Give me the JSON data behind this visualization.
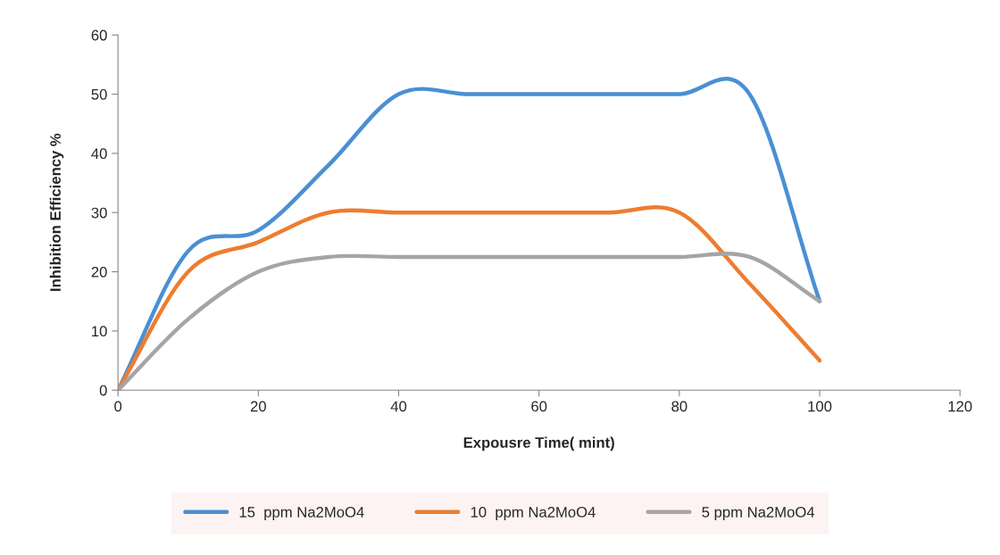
{
  "chart_data": {
    "type": "line",
    "xlabel": "Expousre Time( mint)",
    "ylabel": "Inhibition Efficiency %",
    "x": [
      0,
      10,
      20,
      30,
      40,
      50,
      60,
      70,
      80,
      90,
      100
    ],
    "series": [
      {
        "name": "15  ppm Na2MoO4",
        "color": "#4a8fd4",
        "values": [
          0,
          23.5,
          27,
          38,
          50,
          50,
          50,
          50,
          50,
          50,
          15
        ]
      },
      {
        "name": "10  ppm Na2MoO4",
        "color": "#ed7d31",
        "values": [
          0,
          20,
          25,
          30,
          30,
          30,
          30,
          30,
          30,
          18,
          5
        ]
      },
      {
        "name": "5 ppm Na2MoO4",
        "color": "#a5a5a5",
        "values": [
          0,
          12,
          20,
          22.5,
          22.5,
          22.5,
          22.5,
          22.5,
          22.5,
          22.5,
          15
        ]
      }
    ],
    "xlim": [
      0,
      120
    ],
    "xticks": [
      0,
      20,
      40,
      60,
      80,
      100,
      120
    ],
    "ylim": [
      0,
      60
    ],
    "yticks": [
      0,
      10,
      20,
      30,
      40,
      50,
      60
    ],
    "grid": false,
    "legend": "bottom",
    "marker": "none",
    "line_style": "solid"
  }
}
